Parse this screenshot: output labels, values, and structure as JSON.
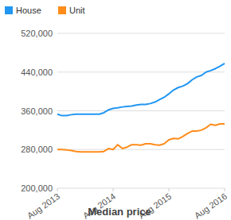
{
  "chart_data": {
    "type": "line",
    "title": "Median price",
    "categories": [
      "Aug 2013",
      null,
      null,
      null,
      null,
      null,
      null,
      null,
      null,
      null,
      null,
      null,
      "Aug 2014",
      null,
      null,
      null,
      null,
      null,
      null,
      null,
      null,
      null,
      null,
      null,
      "Aug 2015",
      null,
      null,
      null,
      null,
      null,
      null,
      null,
      null,
      null,
      null,
      null,
      "Aug 2016"
    ],
    "series": [
      {
        "name": "House",
        "color": "#2196f3",
        "values": [
          353000,
          350000,
          350000,
          352000,
          353000,
          353000,
          353000,
          353000,
          353000,
          353000,
          356000,
          362000,
          365000,
          366000,
          368000,
          369000,
          370000,
          372000,
          373000,
          373000,
          375000,
          378000,
          383000,
          388000,
          395000,
          403000,
          408000,
          411000,
          416000,
          424000,
          430000,
          433000,
          440000,
          443000,
          447000,
          452000,
          458000
        ]
      },
      {
        "name": "Unit",
        "color": "#ff8c1a",
        "values": [
          280000,
          280000,
          279000,
          278000,
          276000,
          275000,
          275000,
          275000,
          275000,
          275000,
          276000,
          282000,
          280000,
          290000,
          282000,
          285000,
          290000,
          290000,
          289000,
          292000,
          292000,
          290000,
          289000,
          292000,
          300000,
          303000,
          302000,
          307000,
          313000,
          318000,
          318000,
          320000,
          325000,
          332000,
          330000,
          333000,
          333000
        ]
      }
    ],
    "ylim": [
      200000,
      520000
    ],
    "yticks": [
      {
        "value": 200000,
        "label": "200,000"
      },
      {
        "value": 280000,
        "label": "280,000"
      },
      {
        "value": 360000,
        "label": "360,000"
      },
      {
        "value": 440000,
        "label": "440,000"
      },
      {
        "value": 520000,
        "label": "520,000"
      }
    ],
    "grid": true,
    "legend": "top-left"
  }
}
